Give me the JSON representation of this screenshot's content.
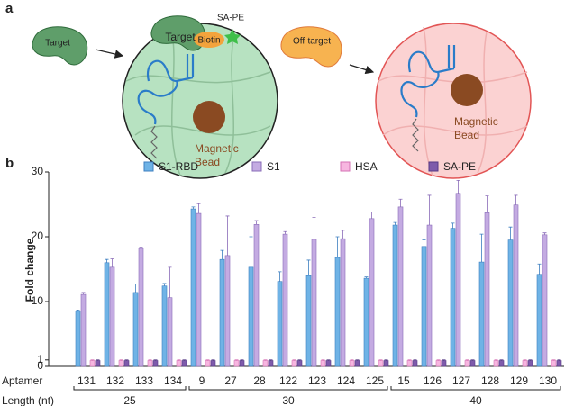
{
  "figure": {
    "panel_a": {
      "label": "a",
      "target": "Target",
      "off_target": "Off-target",
      "bound_target": "Target",
      "biotin": "Biotin",
      "sa_pe": "SA-PE",
      "left_bead": [
        "Magnetic",
        "Bead"
      ],
      "right_bead": [
        "Magnetic",
        "Bead"
      ]
    },
    "panel_b_label": "b"
  },
  "chart_data": {
    "type": "bar",
    "y_label": "Fold change",
    "category_label": "Aptamer",
    "group_label": "Length (nt)",
    "categories": [
      "131",
      "132",
      "133",
      "134",
      "9",
      "27",
      "28",
      "122",
      "123",
      "124",
      "125",
      "15",
      "126",
      "127",
      "128",
      "129",
      "130"
    ],
    "length_groups": [
      "25",
      "25",
      "25",
      "25",
      "30",
      "30",
      "30",
      "30",
      "30",
      "30",
      "30",
      "40",
      "40",
      "40",
      "40",
      "40",
      "40"
    ],
    "ylim": [
      0,
      30
    ],
    "yticks": [
      0,
      1,
      10,
      20,
      30
    ],
    "series": [
      {
        "name": "S1-RBD",
        "color": "#6fb3e6",
        "stroke": "#3d7fc0",
        "values": [
          8.5,
          16,
          11.4,
          12.4,
          24.3,
          16.5,
          15.3,
          13.1,
          14,
          16.8,
          13.6,
          21.8,
          18.5,
          21.3,
          16.1,
          19.5,
          14.2
        ],
        "errors": [
          0.2,
          0.5,
          1.3,
          0.4,
          0.3,
          1.4,
          4.7,
          1.5,
          2.4,
          3.2,
          0.2,
          0.4,
          1,
          0.8,
          4.3,
          2,
          1.6
        ]
      },
      {
        "name": "S1",
        "color": "#c4abe2",
        "stroke": "#8a6cb8",
        "values": [
          11.1,
          15.3,
          18.2,
          10.6,
          23.6,
          17.1,
          21.9,
          20.4,
          19.6,
          19.7,
          22.8,
          24.6,
          21.8,
          26.7,
          23.7,
          24.9,
          20.3
        ],
        "errors": [
          0.3,
          1.3,
          0.2,
          4.7,
          1.5,
          6.1,
          0.6,
          0.4,
          3.4,
          1.3,
          1,
          1.2,
          4.6,
          2,
          2.6,
          1.5,
          0.3
        ]
      },
      {
        "name": "HSA",
        "color": "#f7b6e0",
        "stroke": "#d672b5",
        "values": [
          0.9,
          0.9,
          0.9,
          0.9,
          0.9,
          0.9,
          0.9,
          0.9,
          0.9,
          0.9,
          0.9,
          0.9,
          0.9,
          0.9,
          0.9,
          0.9,
          0.9
        ],
        "errors": [
          0.1,
          0.1,
          0.1,
          0.1,
          0.1,
          0.1,
          0.1,
          0.1,
          0.1,
          0.1,
          0.1,
          0.1,
          0.1,
          0.1,
          0.1,
          0.1,
          0.1
        ]
      },
      {
        "name": "SA-PE",
        "color": "#7e5bab",
        "stroke": "#553a85",
        "values": [
          0.9,
          0.9,
          0.9,
          0.9,
          0.9,
          0.9,
          0.9,
          0.9,
          0.9,
          0.9,
          0.9,
          0.9,
          0.9,
          0.9,
          0.9,
          0.9,
          0.9
        ],
        "errors": [
          0.1,
          0.1,
          0.1,
          0.1,
          0.1,
          0.1,
          0.1,
          0.1,
          0.1,
          0.1,
          0.1,
          0.1,
          0.1,
          0.1,
          0.1,
          0.1,
          0.1
        ]
      }
    ]
  }
}
